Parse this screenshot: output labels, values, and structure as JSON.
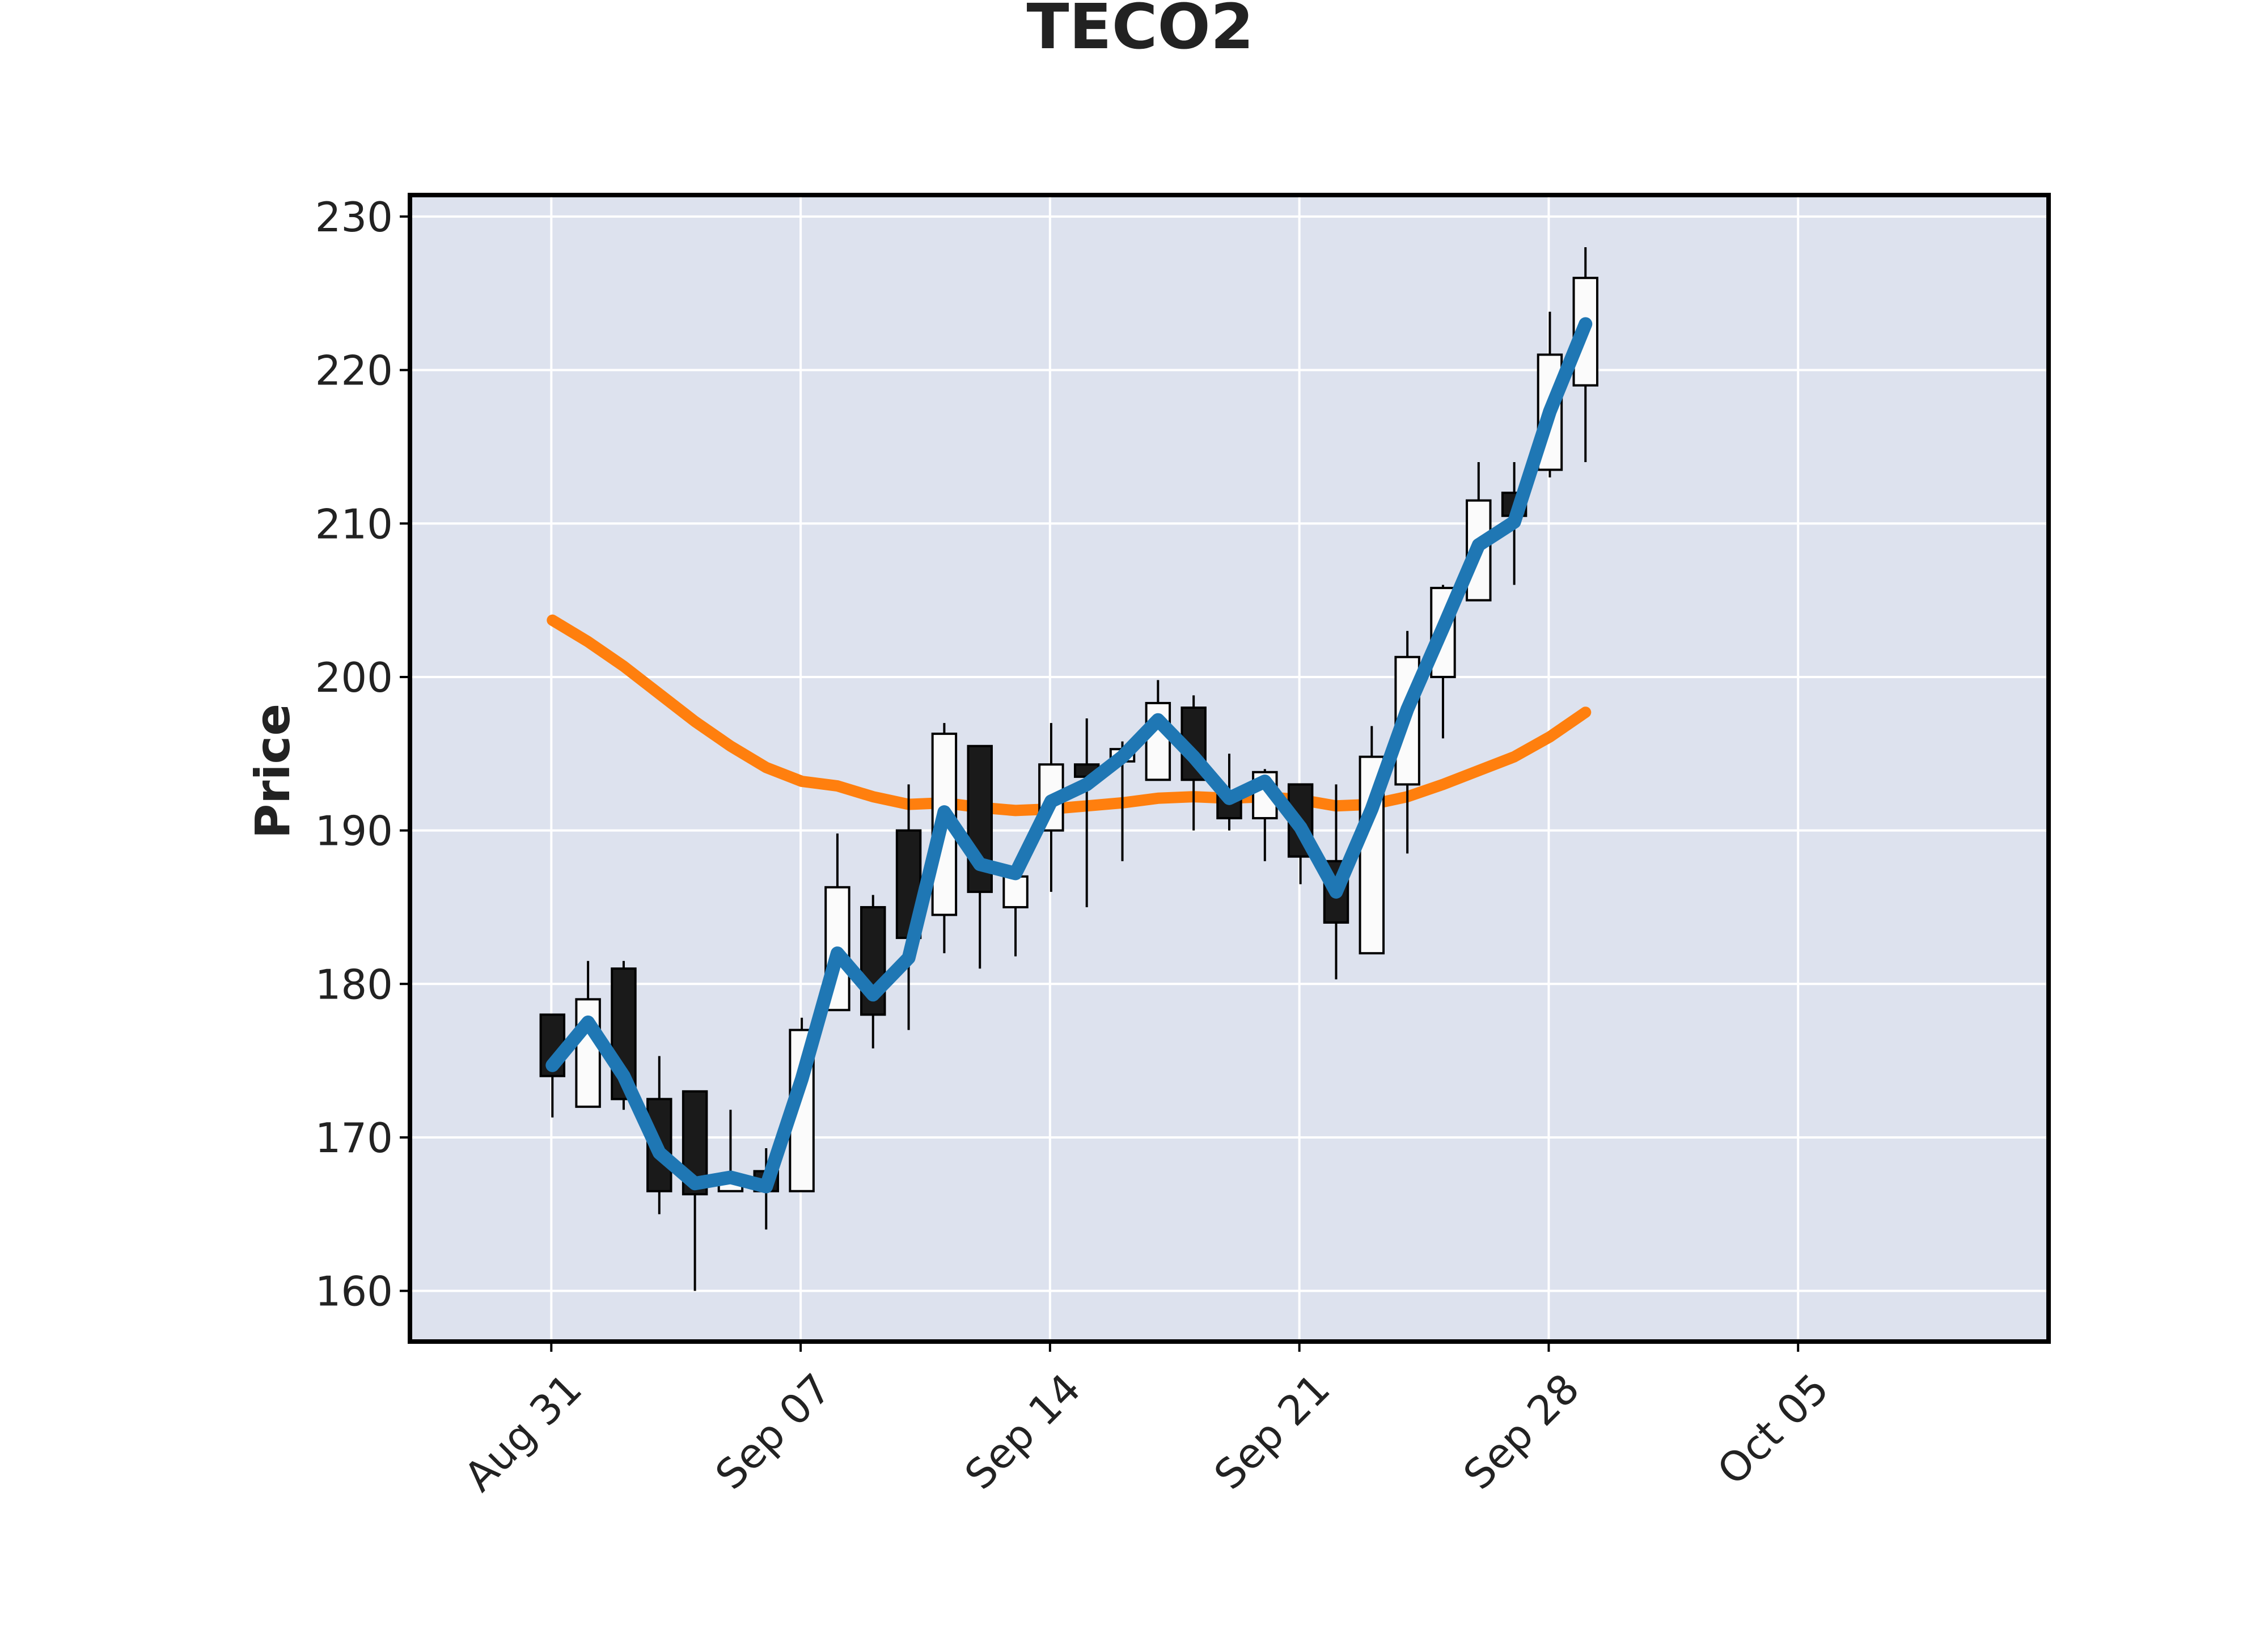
{
  "chart_data": {
    "type": "candlestick",
    "title": "TECO2",
    "xlabel": "",
    "ylabel": "Price",
    "ylim": [
      156.7,
      231.4
    ],
    "yticks": [
      160,
      170,
      180,
      190,
      200,
      210,
      220,
      230
    ],
    "grid": true,
    "legend": "none",
    "xtick_labels": [
      {
        "date": "2020-08-31",
        "label": "Aug 31"
      },
      {
        "date": "2020-09-07",
        "label": "Sep 07"
      },
      {
        "date": "2020-09-14",
        "label": "Sep 14"
      },
      {
        "date": "2020-09-21",
        "label": "Sep 21"
      },
      {
        "date": "2020-09-28",
        "label": "Sep 28"
      },
      {
        "date": "2020-10-05",
        "label": "Oct 05"
      }
    ],
    "xlim": [
      "2020-08-27",
      "2020-10-12"
    ],
    "colors": {
      "plot_background": "#dde2ee",
      "grid": "#ffffff",
      "up_fill": "#fbfbfb",
      "down_fill": "#1a1a1a",
      "candle_edge": "#000000",
      "series_1": "#1f77b4",
      "series_2": "#ff7f0e"
    },
    "candles": [
      {
        "date": "2020-08-31",
        "open": 178.0,
        "high": 178.0,
        "low": 171.3,
        "close": 174.0
      },
      {
        "date": "2020-09-01",
        "open": 172.0,
        "high": 181.5,
        "low": 172.0,
        "close": 179.0
      },
      {
        "date": "2020-09-02",
        "open": 181.0,
        "high": 181.5,
        "low": 171.8,
        "close": 172.5
      },
      {
        "date": "2020-09-03",
        "open": 172.5,
        "high": 175.3,
        "low": 165.0,
        "close": 166.5
      },
      {
        "date": "2020-09-04",
        "open": 173.0,
        "high": 173.0,
        "low": 160.0,
        "close": 166.3
      },
      {
        "date": "2020-09-05",
        "open": 166.5,
        "high": 171.8,
        "low": 166.5,
        "close": 167.5
      },
      {
        "date": "2020-09-06",
        "open": 167.8,
        "high": 169.3,
        "low": 164.0,
        "close": 166.5
      },
      {
        "date": "2020-09-07",
        "open": 166.5,
        "high": 177.8,
        "low": 166.5,
        "close": 177.0
      },
      {
        "date": "2020-09-08",
        "open": 178.3,
        "high": 189.8,
        "low": 178.3,
        "close": 186.3
      },
      {
        "date": "2020-09-09",
        "open": 185.0,
        "high": 185.8,
        "low": 175.8,
        "close": 178.0
      },
      {
        "date": "2020-09-10",
        "open": 190.0,
        "high": 193.0,
        "low": 177.0,
        "close": 183.0
      },
      {
        "date": "2020-09-11",
        "open": 184.5,
        "high": 197.0,
        "low": 182.0,
        "close": 196.3
      },
      {
        "date": "2020-09-12",
        "open": 195.5,
        "high": 195.5,
        "low": 181.0,
        "close": 186.0
      },
      {
        "date": "2020-09-13",
        "open": 185.0,
        "high": 187.0,
        "low": 181.8,
        "close": 187.0
      },
      {
        "date": "2020-09-14",
        "open": 190.0,
        "high": 197.0,
        "low": 186.0,
        "close": 194.3
      },
      {
        "date": "2020-09-15",
        "open": 194.3,
        "high": 197.3,
        "low": 185.0,
        "close": 193.5
      },
      {
        "date": "2020-09-16",
        "open": 194.5,
        "high": 195.8,
        "low": 188.0,
        "close": 195.3
      },
      {
        "date": "2020-09-17",
        "open": 193.3,
        "high": 199.8,
        "low": 193.3,
        "close": 198.3
      },
      {
        "date": "2020-09-18",
        "open": 198.0,
        "high": 198.8,
        "low": 190.0,
        "close": 193.3
      },
      {
        "date": "2020-09-19",
        "open": 192.3,
        "high": 195.0,
        "low": 190.0,
        "close": 190.8
      },
      {
        "date": "2020-09-20",
        "open": 190.8,
        "high": 194.0,
        "low": 188.0,
        "close": 193.8
      },
      {
        "date": "2020-09-21",
        "open": 193.0,
        "high": 193.0,
        "low": 186.5,
        "close": 188.3
      },
      {
        "date": "2020-09-22",
        "open": 188.0,
        "high": 193.0,
        "low": 180.3,
        "close": 184.0
      },
      {
        "date": "2020-09-23",
        "open": 182.0,
        "high": 196.8,
        "low": 182.0,
        "close": 194.8
      },
      {
        "date": "2020-09-24",
        "open": 193.0,
        "high": 203.0,
        "low": 188.5,
        "close": 201.3
      },
      {
        "date": "2020-09-25",
        "open": 200.0,
        "high": 206.0,
        "low": 196.0,
        "close": 205.8
      },
      {
        "date": "2020-09-26",
        "open": 205.0,
        "high": 214.0,
        "low": 205.0,
        "close": 211.5
      },
      {
        "date": "2020-09-27",
        "open": 212.0,
        "high": 214.0,
        "low": 206.0,
        "close": 210.5
      },
      {
        "date": "2020-09-28",
        "open": 213.5,
        "high": 223.8,
        "low": 213.0,
        "close": 221.0
      },
      {
        "date": "2020-09-29",
        "open": 219.0,
        "high": 228.0,
        "low": 214.0,
        "close": 226.0
      }
    ],
    "series": [
      {
        "values": [
          174.7,
          177.5,
          174.0,
          169.0,
          167.0,
          167.4,
          166.8,
          173.8,
          182.0,
          179.3,
          181.7,
          191.2,
          187.8,
          187.2,
          191.9,
          193.0,
          194.8,
          197.2,
          194.8,
          192.1,
          193.2,
          190.2,
          186.0,
          191.4,
          197.9,
          203.2,
          208.6,
          210.1,
          217.3,
          223.0
        ]
      },
      {
        "values": [
          203.7,
          202.3,
          200.7,
          198.9,
          197.1,
          195.5,
          194.1,
          193.2,
          192.9,
          192.2,
          191.7,
          191.8,
          191.5,
          191.3,
          191.4,
          191.6,
          191.8,
          192.1,
          192.2,
          192.1,
          192.2,
          192.0,
          191.6,
          191.7,
          192.2,
          193.0,
          193.9,
          194.8,
          196.1,
          197.7
        ]
      }
    ]
  }
}
